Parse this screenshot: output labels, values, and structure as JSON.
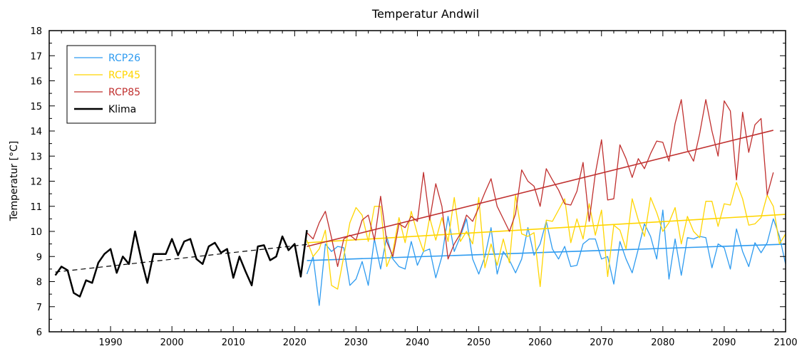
{
  "chart_data": {
    "type": "line",
    "title": "Temperatur Andwil",
    "xlabel": "",
    "ylabel": "Temperatur [°C]",
    "xlim": [
      1980,
      2100
    ],
    "ylim": [
      6,
      18
    ],
    "x_ticks": [
      1990,
      2000,
      2010,
      2020,
      2030,
      2040,
      2050,
      2060,
      2070,
      2080,
      2090,
      2100
    ],
    "y_ticks": [
      6,
      7,
      8,
      9,
      10,
      11,
      12,
      13,
      14,
      15,
      16,
      17,
      18
    ],
    "legend_position": "top-left",
    "grid": false,
    "series": [
      {
        "name": "RCP26",
        "color": "#2e9bf0",
        "x_start": 2022,
        "values": [
          8.3,
          9.0,
          7.05,
          9.5,
          9.2,
          9.4,
          9.35,
          7.85,
          8.1,
          8.8,
          7.85,
          9.7,
          8.5,
          9.8,
          8.9,
          8.6,
          8.5,
          9.6,
          8.65,
          9.2,
          9.3,
          8.15,
          9.0,
          10.6,
          9.2,
          9.8,
          10.5,
          8.9,
          8.3,
          9.0,
          10.15,
          8.3,
          9.2,
          8.85,
          8.35,
          8.9,
          10.15,
          9.05,
          9.5,
          10.4,
          9.3,
          8.9,
          9.4,
          8.6,
          8.65,
          9.5,
          9.7,
          9.7,
          8.9,
          9.0,
          7.9,
          9.6,
          8.9,
          8.35,
          9.3,
          10.3,
          9.8,
          8.9,
          10.85,
          8.1,
          9.7,
          8.25,
          9.75,
          9.7,
          9.8,
          9.75,
          8.55,
          9.5,
          9.35,
          8.5,
          10.1,
          9.2,
          8.6,
          9.55,
          9.15,
          9.55,
          10.5,
          9.8,
          8.7
        ],
        "trend": [
          8.84,
          9.49
        ]
      },
      {
        "name": "RCP45",
        "color": "#ffd500",
        "x_start": 2022,
        "values": [
          9.65,
          9.0,
          9.3,
          10.05,
          7.85,
          7.7,
          9.0,
          10.35,
          10.95,
          10.65,
          9.6,
          11.0,
          11.0,
          8.6,
          9.2,
          10.55,
          9.55,
          10.8,
          9.9,
          9.2,
          10.55,
          9.65,
          10.55,
          9.6,
          11.35,
          9.6,
          10.0,
          9.5,
          11.35,
          8.55,
          9.5,
          8.65,
          9.7,
          8.75,
          11.45,
          9.9,
          9.8,
          9.95,
          7.8,
          10.45,
          10.4,
          10.85,
          11.3,
          9.55,
          10.5,
          9.7,
          11.1,
          9.85,
          10.85,
          8.2,
          10.25,
          10.05,
          9.3,
          11.3,
          10.45,
          9.8,
          11.35,
          10.75,
          10.0,
          10.35,
          10.95,
          9.5,
          10.6,
          10.0,
          9.75,
          11.2,
          11.2,
          10.2,
          11.1,
          11.05,
          11.95,
          11.3,
          10.25,
          10.3,
          10.55,
          11.45,
          11.0,
          9.5,
          9.9
        ],
        "trend": [
          9.55,
          10.68
        ]
      },
      {
        "name": "RCP85",
        "color": "#c0302f",
        "x_start": 2022,
        "values": [
          9.95,
          9.7,
          10.35,
          10.8,
          9.75,
          8.6,
          9.7,
          9.85,
          9.65,
          10.45,
          10.65,
          9.65,
          11.4,
          9.6,
          9.0,
          10.3,
          10.15,
          10.6,
          10.4,
          12.35,
          10.45,
          11.9,
          11.0,
          8.9,
          9.5,
          9.9,
          10.65,
          10.4,
          10.95,
          11.55,
          12.1,
          11.0,
          10.5,
          10.0,
          10.7,
          12.45,
          12.0,
          11.8,
          11.0,
          12.5,
          12.05,
          11.65,
          11.1,
          11.05,
          11.6,
          12.75,
          10.4,
          12.3,
          13.65,
          11.25,
          11.3,
          13.45,
          12.9,
          12.15,
          12.9,
          12.5,
          13.1,
          13.6,
          13.55,
          12.8,
          14.3,
          15.25,
          13.25,
          12.8,
          13.9,
          15.25,
          14.0,
          13.0,
          15.2,
          14.8,
          12.05,
          14.75,
          13.15,
          14.25,
          14.5,
          11.45,
          12.35
        ],
        "trend": [
          9.4,
          14.03
        ]
      },
      {
        "name": "Klima",
        "color": "#000000",
        "x_start": 1981,
        "values": [
          8.25,
          8.6,
          8.45,
          7.55,
          7.4,
          8.05,
          7.95,
          8.75,
          9.1,
          9.3,
          8.35,
          9.0,
          8.7,
          10.0,
          8.9,
          7.95,
          9.1,
          9.1,
          9.1,
          9.7,
          9.05,
          9.6,
          9.7,
          8.9,
          8.7,
          9.4,
          9.55,
          9.15,
          9.3,
          8.15,
          9.0,
          8.4,
          7.85,
          9.4,
          9.45,
          8.85,
          9.0,
          9.8,
          9.25,
          9.5,
          8.2,
          10.05
        ],
        "trend": [
          8.38,
          9.48
        ],
        "trend_style": "dashed"
      }
    ]
  }
}
